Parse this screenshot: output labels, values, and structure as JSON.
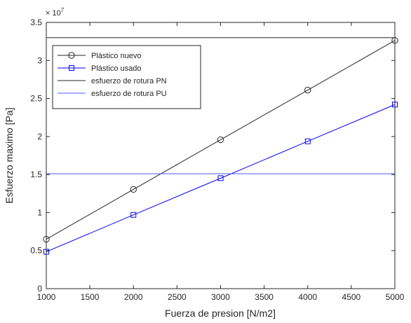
{
  "chart_data": {
    "type": "line",
    "xlabel": "Fuerza de presion [N/m2]",
    "ylabel": "Esfuerzo maximo [Pa]",
    "exponent_label": "× 10^7",
    "xlim": [
      1000,
      5000
    ],
    "ylim": [
      0,
      3.5
    ],
    "y_unit_scale": "1e7",
    "xticks": [
      1000,
      1500,
      2000,
      2500,
      3000,
      3500,
      4000,
      4500,
      5000
    ],
    "yticks": [
      0,
      0.5,
      1,
      1.5,
      2,
      2.5,
      3,
      3.5
    ],
    "grid": false,
    "legend_position": "top-left",
    "series": [
      {
        "name": "Plástico nuevo",
        "color": "#262626",
        "marker": "circle",
        "x": [
          1000,
          2000,
          3000,
          4000,
          5000
        ],
        "y": [
          0.65,
          1.305,
          1.958,
          2.61,
          3.263
        ]
      },
      {
        "name": "Plástico usado",
        "color": "#0000ff",
        "marker": "square",
        "x": [
          1000,
          2000,
          3000,
          4000,
          5000
        ],
        "y": [
          0.485,
          0.97,
          1.452,
          1.937,
          2.42
        ]
      },
      {
        "name": "esfuerzo de rotura PN",
        "color": "#262626",
        "marker": "none",
        "x": [
          1000,
          5000
        ],
        "y": [
          3.3,
          3.3
        ]
      },
      {
        "name": "esfuerzo de rotura PU",
        "color": "#4a5cff",
        "marker": "none",
        "x": [
          1000,
          5000
        ],
        "y": [
          1.51,
          1.51
        ]
      }
    ]
  }
}
